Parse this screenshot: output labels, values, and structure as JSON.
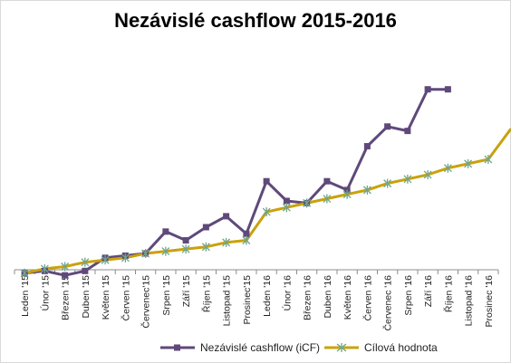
{
  "title": "Nezávislé cashflow 2015-2016",
  "chart_data": {
    "type": "line",
    "title": "Nezávislé cashflow 2015-2016",
    "categories": [
      "Leden '15",
      "Únor '15",
      "Březen '15",
      "Duben '15",
      "Květen '15",
      "Červen '15",
      "Červenec'15",
      "Srpen '15",
      "Září '15",
      "Říjen '15",
      "Listopad '15",
      "Prosinec'15",
      "Leden '16",
      "Únor '16",
      "Březen '16",
      "Duben '16",
      "Květen '16",
      "Červen '16",
      "Červenec '16",
      "Srpen '16",
      "Září '16",
      "Říjen '16",
      "Listopad '16",
      "Prosinec '16"
    ],
    "series": [
      {
        "name": "Nezávislé cashflow (iCF)",
        "color": "#5f497a",
        "marker": "square",
        "values": [
          0,
          1,
          -1,
          1,
          7,
          8,
          9,
          19,
          15,
          21,
          26,
          18,
          42,
          33,
          32,
          42,
          38,
          58,
          67,
          65,
          84,
          84,
          null,
          null
        ]
      },
      {
        "name": "Cílová hodnota",
        "color": "#c9a20c",
        "marker": "asterisk",
        "values": [
          0,
          2,
          3,
          5,
          6,
          7,
          9,
          10,
          11,
          12,
          14,
          15,
          28,
          30,
          32,
          34,
          36,
          38,
          41,
          43,
          45,
          48,
          50,
          52
        ],
        "extension_after_last": 66
      }
    ],
    "ylim": [
      -15,
      100
    ],
    "grid": false,
    "legend": "bottom"
  },
  "legend": {
    "series1": "Nezávislé cashflow (iCF)",
    "series2": "Cílová hodnota"
  }
}
